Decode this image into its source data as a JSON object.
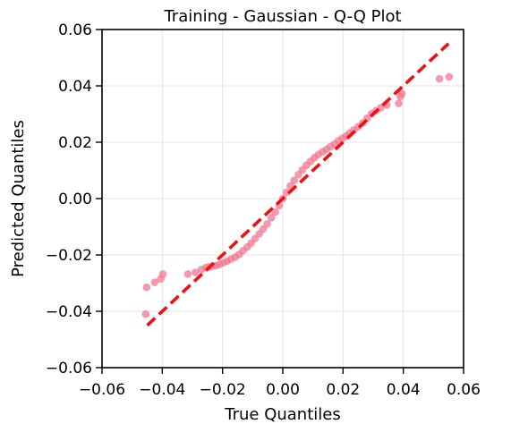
{
  "chart_data": {
    "type": "scatter",
    "title": "Training - Gaussian - Q-Q Plot",
    "xlabel": "True Quantiles",
    "ylabel": "Predicted Quantiles",
    "xlim": [
      -0.06,
      0.06
    ],
    "ylim": [
      -0.06,
      0.06
    ],
    "xticks": [
      -0.06,
      -0.04,
      -0.02,
      0.0,
      0.02,
      0.04,
      0.06
    ],
    "xtick_labels": [
      "−0.06",
      "−0.04",
      "−0.02",
      "0.00",
      "0.02",
      "0.04",
      "0.06"
    ],
    "yticks": [
      -0.06,
      -0.04,
      -0.02,
      0.0,
      0.02,
      0.04,
      0.06
    ],
    "ytick_labels": [
      "−0.06",
      "−0.04",
      "−0.02",
      "0.00",
      "0.02",
      "0.04",
      "0.06"
    ],
    "grid": true,
    "colors": {
      "points": "#f07890",
      "reference_line": "#ee1111"
    },
    "reference_line": {
      "x": [
        -0.045,
        0.055
      ],
      "y": [
        -0.045,
        0.055
      ],
      "style": "dashed"
    },
    "series": [
      {
        "x": [
          -0.0455,
          -0.0452,
          -0.0425,
          -0.0405,
          -0.0398,
          -0.0315,
          -0.029,
          -0.027,
          -0.0255,
          -0.0245,
          -0.0235,
          -0.0222,
          -0.021,
          -0.0198,
          -0.0185,
          -0.0172,
          -0.0158,
          -0.0145,
          -0.0132,
          -0.0118,
          -0.0105,
          -0.0092,
          -0.0078,
          -0.0065,
          -0.0052,
          -0.0038,
          -0.0025,
          -0.0012,
          0.0,
          0.0012,
          0.0025,
          0.0038,
          0.0052,
          0.0065,
          0.0078,
          0.0092,
          0.0105,
          0.0118,
          0.0132,
          0.0145,
          0.0158,
          0.0172,
          0.0185,
          0.0198,
          0.021,
          0.0222,
          0.0235,
          0.025,
          0.0265,
          0.028,
          0.0295,
          0.031,
          0.0325,
          0.0345,
          0.0385,
          0.039,
          0.0395,
          0.052,
          0.0552
        ],
        "y": [
          -0.041,
          -0.0315,
          -0.0297,
          -0.0285,
          -0.0268,
          -0.0268,
          -0.0262,
          -0.0252,
          -0.0245,
          -0.0243,
          -0.024,
          -0.0238,
          -0.0234,
          -0.0228,
          -0.0222,
          -0.0215,
          -0.0208,
          -0.0198,
          -0.0185,
          -0.0172,
          -0.0158,
          -0.0142,
          -0.0125,
          -0.0108,
          -0.009,
          -0.0068,
          -0.0048,
          -0.0025,
          0.0,
          0.0022,
          0.0045,
          0.0065,
          0.0085,
          0.0102,
          0.0118,
          0.0132,
          0.0145,
          0.0156,
          0.0166,
          0.0175,
          0.0184,
          0.0194,
          0.0205,
          0.0214,
          0.0222,
          0.0232,
          0.0243,
          0.0255,
          0.0268,
          0.0285,
          0.0302,
          0.0312,
          0.0322,
          0.0332,
          0.0338,
          0.0362,
          0.0372,
          0.0425,
          0.0432
        ]
      }
    ]
  }
}
